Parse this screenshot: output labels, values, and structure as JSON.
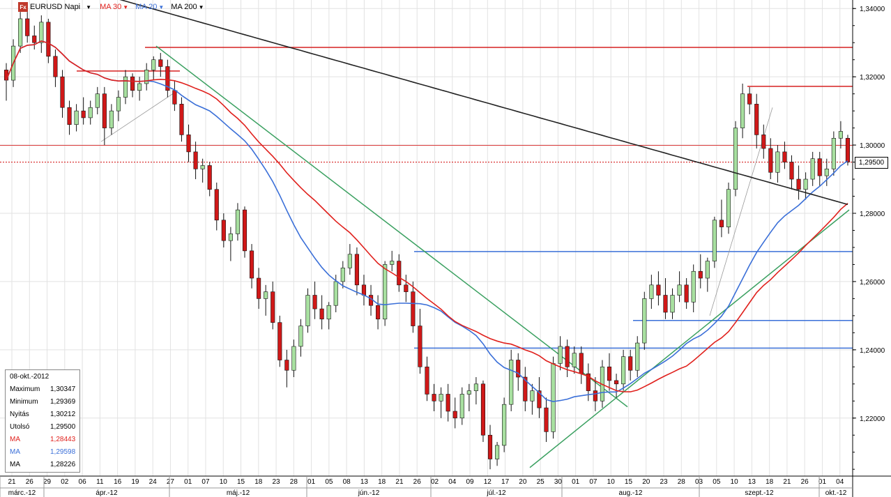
{
  "header": {
    "logo": "Fx",
    "symbol": "EURUSD Napi",
    "ma30_label": "MA 30",
    "ma20_label": "MA 20",
    "ma200_label": "MA 200",
    "colors": {
      "ma30": "#e0201c",
      "ma20": "#3a6fd8",
      "ma200": "#222222"
    }
  },
  "info_box": {
    "date": "08-okt.-2012",
    "rows": [
      {
        "key": "Maximum",
        "value": "1,30347",
        "color": "#000000"
      },
      {
        "key": "Minimum",
        "value": "1,29369",
        "color": "#000000"
      },
      {
        "key": "Nyitás",
        "value": "1,30212",
        "color": "#000000"
      },
      {
        "key": "Utolsó",
        "value": "1,29500",
        "color": "#000000"
      },
      {
        "key": "MA",
        "value": "1,28443",
        "color": "#e0201c"
      },
      {
        "key": "MA",
        "value": "1,29598",
        "color": "#3a6fd8"
      },
      {
        "key": "MA",
        "value": "1,28226",
        "color": "#000000"
      }
    ]
  },
  "current_price_label": "1,29500",
  "chart_data": {
    "type": "candlestick",
    "y_axis_ticks": [
      "1,34000",
      "1,32000",
      "1,30000",
      "1,28000",
      "1,26000",
      "1,24000",
      "1,22000"
    ],
    "y_tick_values": [
      1.34,
      1.32,
      1.3,
      1.28,
      1.26,
      1.24,
      1.22
    ],
    "ylim": [
      1.203,
      1.3425
    ],
    "current_price": 1.295,
    "day_labels": [
      "21",
      "26",
      "29",
      "02",
      "06",
      "11",
      "16",
      "19",
      "24",
      "27",
      "01",
      "07",
      "10",
      "15",
      "18",
      "23",
      "28",
      "01",
      "05",
      "08",
      "13",
      "18",
      "21",
      "26",
      "02",
      "04",
      "09",
      "12",
      "17",
      "20",
      "25",
      "30",
      "01",
      "07",
      "10",
      "15",
      "20",
      "23",
      "28",
      "03",
      "05",
      "10",
      "13",
      "18",
      "21",
      "26",
      "01",
      "04"
    ],
    "month_labels": [
      "márc.-12",
      "ápr.-12",
      "máj.-12",
      "jún.-12",
      "júl.-12",
      "aug.-12",
      "szept.-12",
      "okt.-12"
    ],
    "candles_ohlc": [
      [
        1.322,
        1.324,
        1.313,
        1.319
      ],
      [
        1.319,
        1.331,
        1.317,
        1.329
      ],
      [
        1.329,
        1.339,
        1.327,
        1.337
      ],
      [
        1.337,
        1.339,
        1.33,
        1.332
      ],
      [
        1.332,
        1.335,
        1.328,
        1.33
      ],
      [
        1.33,
        1.338,
        1.327,
        1.336
      ],
      [
        1.336,
        1.337,
        1.324,
        1.326
      ],
      [
        1.326,
        1.328,
        1.317,
        1.32
      ],
      [
        1.32,
        1.322,
        1.308,
        1.311
      ],
      [
        1.311,
        1.313,
        1.303,
        1.306
      ],
      [
        1.306,
        1.312,
        1.304,
        1.31
      ],
      [
        1.31,
        1.314,
        1.306,
        1.308
      ],
      [
        1.308,
        1.313,
        1.306,
        1.311
      ],
      [
        1.311,
        1.317,
        1.309,
        1.315
      ],
      [
        1.315,
        1.317,
        1.3,
        1.305
      ],
      [
        1.305,
        1.312,
        1.303,
        1.31
      ],
      [
        1.31,
        1.316,
        1.307,
        1.314
      ],
      [
        1.314,
        1.322,
        1.312,
        1.32
      ],
      [
        1.32,
        1.321,
        1.314,
        1.316
      ],
      [
        1.316,
        1.32,
        1.313,
        1.318
      ],
      [
        1.318,
        1.324,
        1.316,
        1.322
      ],
      [
        1.322,
        1.326,
        1.319,
        1.325
      ],
      [
        1.325,
        1.327,
        1.32,
        1.323
      ],
      [
        1.323,
        1.325,
        1.314,
        1.316
      ],
      [
        1.316,
        1.319,
        1.31,
        1.312
      ],
      [
        1.312,
        1.314,
        1.301,
        1.303
      ],
      [
        1.303,
        1.306,
        1.295,
        1.298
      ],
      [
        1.298,
        1.301,
        1.29,
        1.293
      ],
      [
        1.293,
        1.296,
        1.289,
        1.294
      ],
      [
        1.294,
        1.295,
        1.285,
        1.287
      ],
      [
        1.287,
        1.289,
        1.275,
        1.278
      ],
      [
        1.278,
        1.28,
        1.27,
        1.272
      ],
      [
        1.272,
        1.276,
        1.266,
        1.274
      ],
      [
        1.274,
        1.283,
        1.272,
        1.281
      ],
      [
        1.281,
        1.282,
        1.267,
        1.269
      ],
      [
        1.269,
        1.271,
        1.258,
        1.261
      ],
      [
        1.261,
        1.264,
        1.252,
        1.255
      ],
      [
        1.255,
        1.259,
        1.25,
        1.257
      ],
      [
        1.257,
        1.26,
        1.246,
        1.248
      ],
      [
        1.248,
        1.25,
        1.235,
        1.237
      ],
      [
        1.237,
        1.24,
        1.229,
        1.234
      ],
      [
        1.234,
        1.243,
        1.232,
        1.241
      ],
      [
        1.241,
        1.249,
        1.238,
        1.247
      ],
      [
        1.247,
        1.258,
        1.245,
        1.256
      ],
      [
        1.256,
        1.26,
        1.249,
        1.252
      ],
      [
        1.252,
        1.256,
        1.246,
        1.249
      ],
      [
        1.249,
        1.254,
        1.246,
        1.253
      ],
      [
        1.253,
        1.262,
        1.251,
        1.26
      ],
      [
        1.26,
        1.266,
        1.258,
        1.264
      ],
      [
        1.264,
        1.271,
        1.262,
        1.268
      ],
      [
        1.268,
        1.27,
        1.256,
        1.259
      ],
      [
        1.259,
        1.262,
        1.253,
        1.256
      ],
      [
        1.256,
        1.259,
        1.25,
        1.253
      ],
      [
        1.253,
        1.256,
        1.246,
        1.249
      ],
      [
        1.249,
        1.266,
        1.247,
        1.265
      ],
      [
        1.265,
        1.269,
        1.263,
        1.266
      ],
      [
        1.266,
        1.268,
        1.257,
        1.259
      ],
      [
        1.259,
        1.262,
        1.254,
        1.257
      ],
      [
        1.257,
        1.26,
        1.245,
        1.247
      ],
      [
        1.247,
        1.252,
        1.233,
        1.235
      ],
      [
        1.235,
        1.238,
        1.225,
        1.227
      ],
      [
        1.227,
        1.23,
        1.222,
        1.225
      ],
      [
        1.225,
        1.229,
        1.22,
        1.227
      ],
      [
        1.227,
        1.23,
        1.219,
        1.222
      ],
      [
        1.222,
        1.226,
        1.217,
        1.22
      ],
      [
        1.22,
        1.229,
        1.218,
        1.227
      ],
      [
        1.227,
        1.23,
        1.222,
        1.228
      ],
      [
        1.228,
        1.232,
        1.224,
        1.23
      ],
      [
        1.23,
        1.231,
        1.213,
        1.215
      ],
      [
        1.215,
        1.218,
        1.205,
        1.208
      ],
      [
        1.208,
        1.213,
        1.206,
        1.212
      ],
      [
        1.212,
        1.226,
        1.21,
        1.224
      ],
      [
        1.224,
        1.24,
        1.222,
        1.237
      ],
      [
        1.237,
        1.239,
        1.228,
        1.232
      ],
      [
        1.232,
        1.235,
        1.222,
        1.225
      ],
      [
        1.225,
        1.23,
        1.221,
        1.228
      ],
      [
        1.228,
        1.232,
        1.22,
        1.223
      ],
      [
        1.223,
        1.226,
        1.213,
        1.216
      ],
      [
        1.216,
        1.238,
        1.214,
        1.236
      ],
      [
        1.236,
        1.244,
        1.234,
        1.241
      ],
      [
        1.241,
        1.243,
        1.232,
        1.235
      ],
      [
        1.235,
        1.241,
        1.233,
        1.239
      ],
      [
        1.239,
        1.241,
        1.23,
        1.233
      ],
      [
        1.233,
        1.236,
        1.225,
        1.228
      ],
      [
        1.228,
        1.232,
        1.222,
        1.225
      ],
      [
        1.225,
        1.237,
        1.223,
        1.235
      ],
      [
        1.235,
        1.239,
        1.228,
        1.231
      ],
      [
        1.231,
        1.233,
        1.226,
        1.23
      ],
      [
        1.23,
        1.24,
        1.228,
        1.238
      ],
      [
        1.238,
        1.24,
        1.231,
        1.234
      ],
      [
        1.234,
        1.244,
        1.232,
        1.242
      ],
      [
        1.242,
        1.257,
        1.24,
        1.255
      ],
      [
        1.255,
        1.262,
        1.252,
        1.259
      ],
      [
        1.259,
        1.263,
        1.253,
        1.256
      ],
      [
        1.256,
        1.261,
        1.249,
        1.251
      ],
      [
        1.251,
        1.258,
        1.249,
        1.256
      ],
      [
        1.256,
        1.263,
        1.254,
        1.259
      ],
      [
        1.259,
        1.261,
        1.252,
        1.254
      ],
      [
        1.254,
        1.265,
        1.251,
        1.263
      ],
      [
        1.263,
        1.268,
        1.258,
        1.261
      ],
      [
        1.261,
        1.267,
        1.257,
        1.266
      ],
      [
        1.266,
        1.279,
        1.264,
        1.278
      ],
      [
        1.278,
        1.284,
        1.273,
        1.276
      ],
      [
        1.276,
        1.289,
        1.274,
        1.287
      ],
      [
        1.287,
        1.307,
        1.285,
        1.305
      ],
      [
        1.305,
        1.318,
        1.302,
        1.315
      ],
      [
        1.315,
        1.317,
        1.309,
        1.312
      ],
      [
        1.312,
        1.315,
        1.299,
        1.303
      ],
      [
        1.303,
        1.306,
        1.296,
        1.299
      ],
      [
        1.299,
        1.302,
        1.29,
        1.292
      ],
      [
        1.292,
        1.3,
        1.289,
        1.298
      ],
      [
        1.298,
        1.301,
        1.293,
        1.295
      ],
      [
        1.295,
        1.297,
        1.287,
        1.29
      ],
      [
        1.29,
        1.294,
        1.284,
        1.287
      ],
      [
        1.287,
        1.292,
        1.284,
        1.29
      ],
      [
        1.29,
        1.298,
        1.288,
        1.296
      ],
      [
        1.296,
        1.298,
        1.288,
        1.291
      ],
      [
        1.291,
        1.296,
        1.288,
        1.293
      ],
      [
        1.293,
        1.304,
        1.291,
        1.302
      ],
      [
        1.302,
        1.307,
        1.299,
        1.304
      ],
      [
        1.302,
        1.303,
        1.294,
        1.295
      ]
    ]
  }
}
